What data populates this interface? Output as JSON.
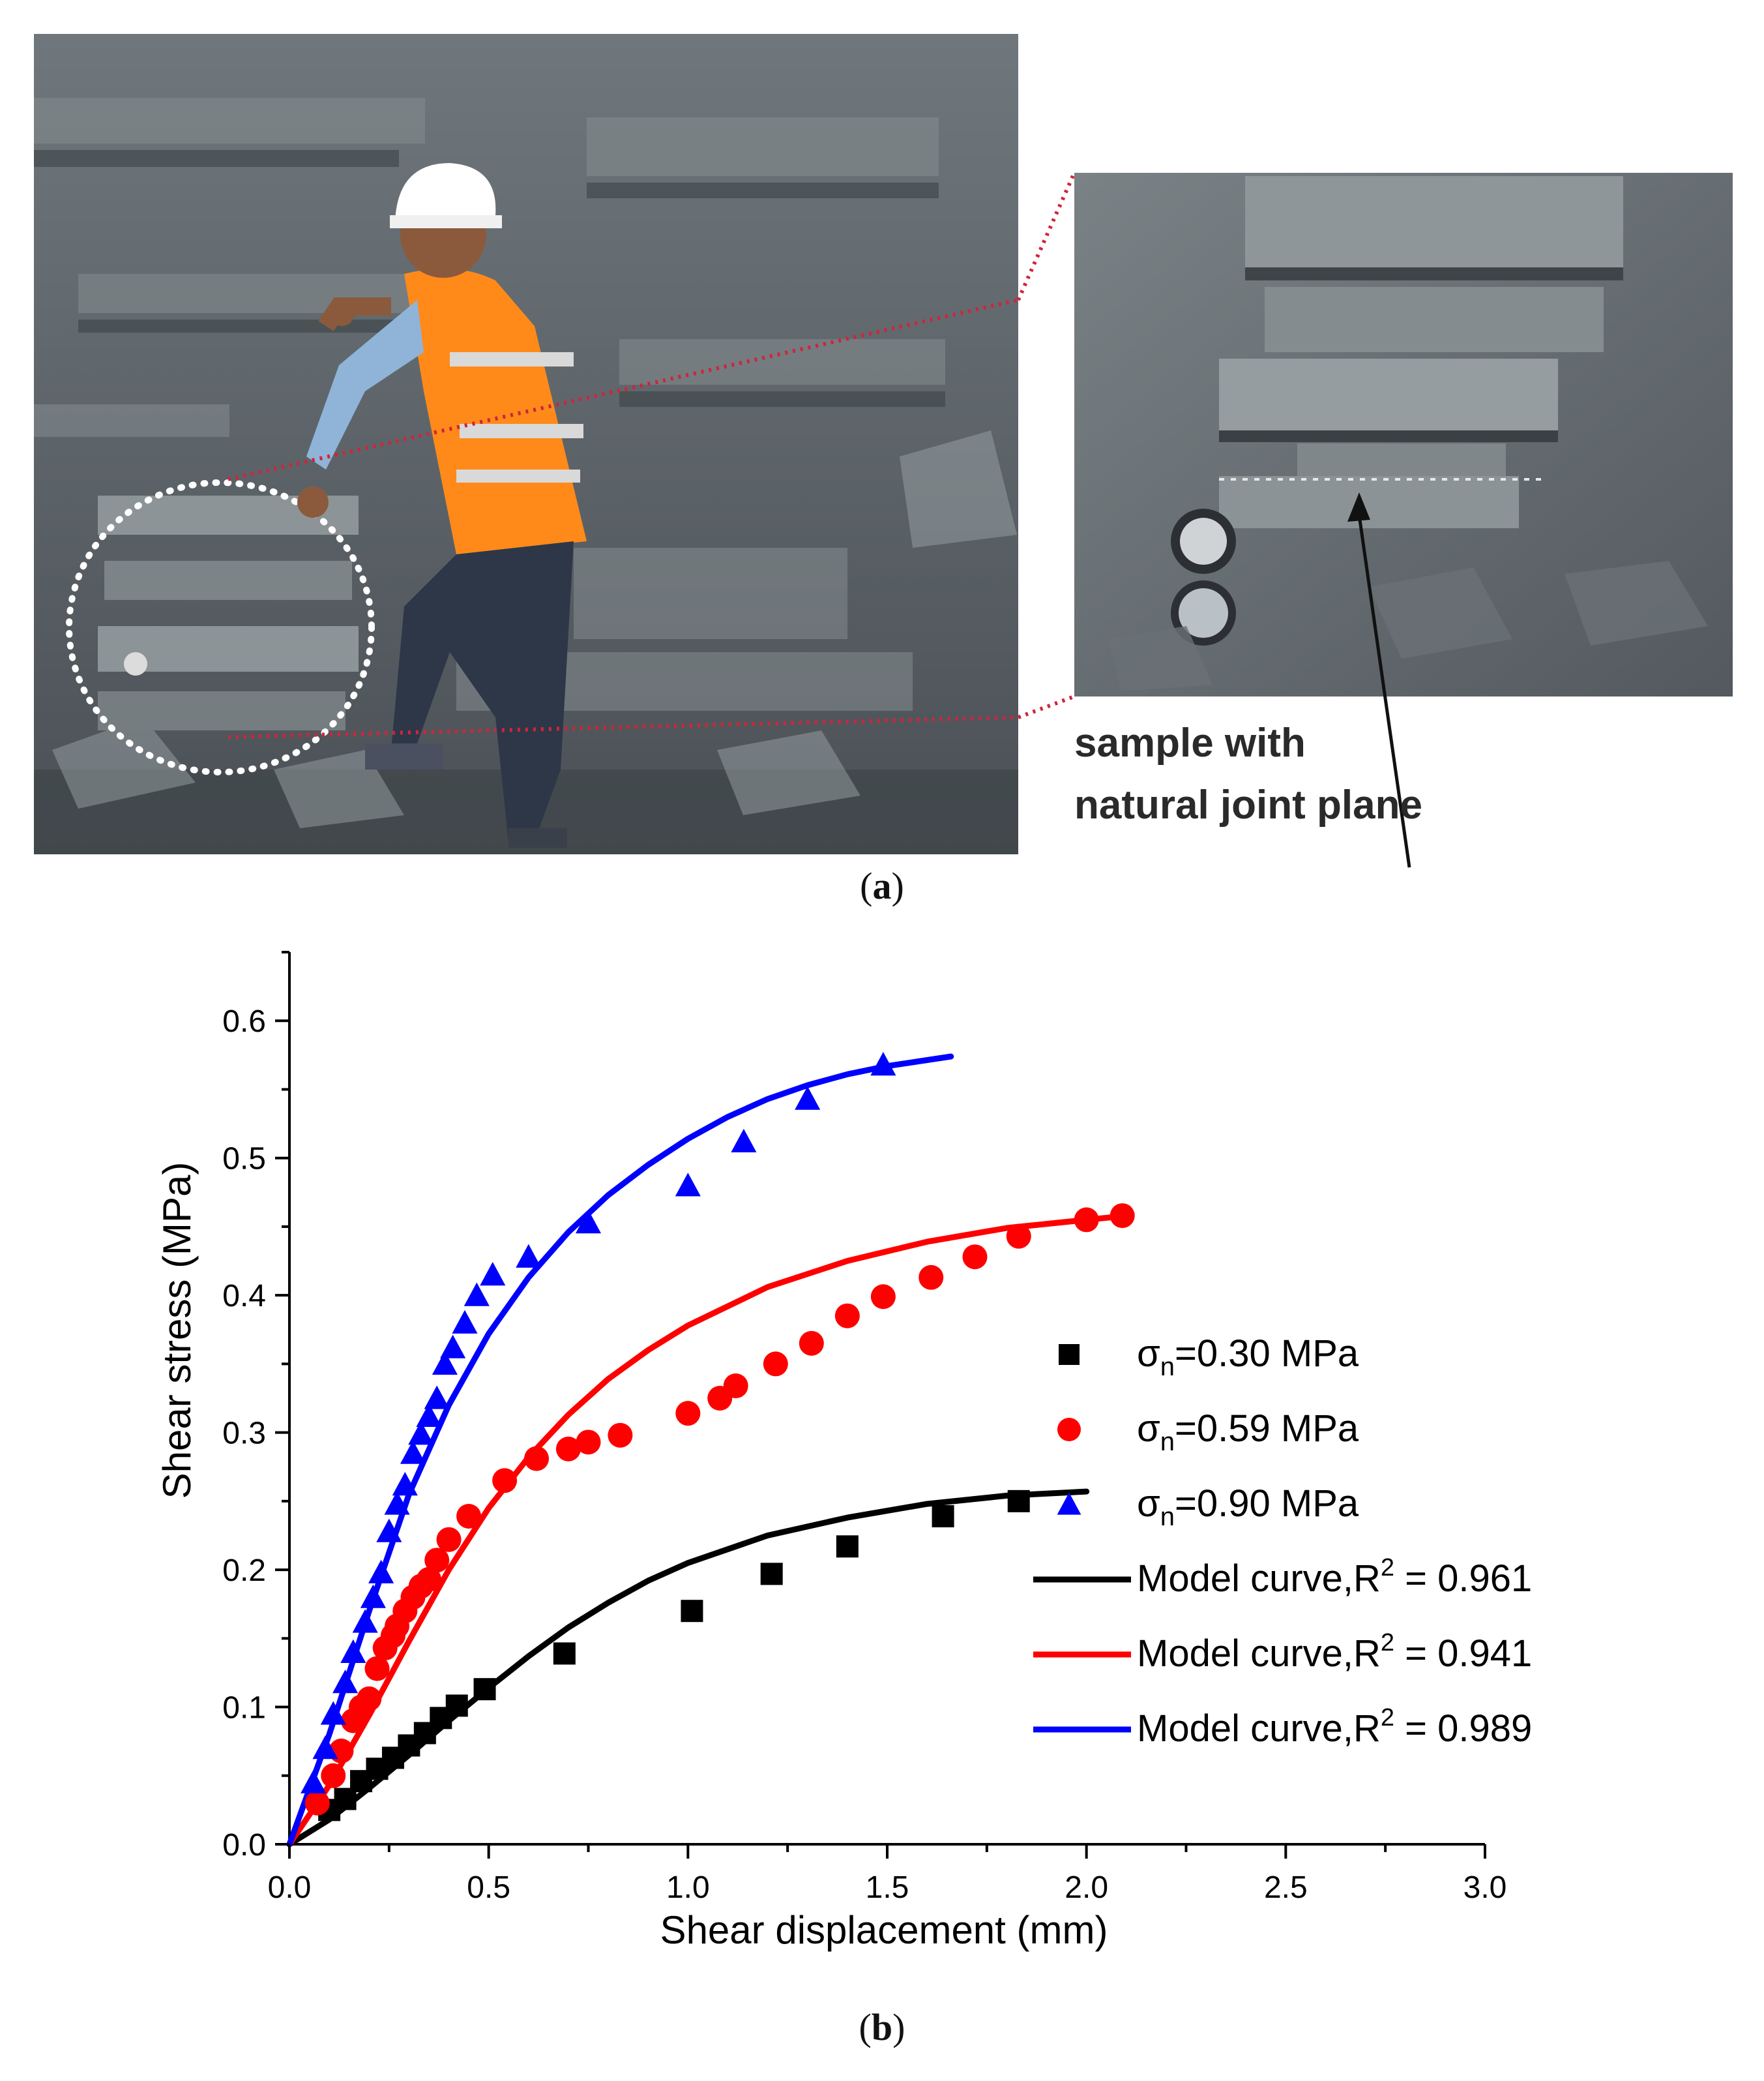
{
  "figure": {
    "panel_a_label": "a",
    "panel_b_label": "b",
    "photo_annotation_line1": "sample with",
    "photo_annotation_line2": "natural joint plane"
  },
  "chart_data": {
    "type": "scatter",
    "xlabel": "Shear displacement (mm)",
    "ylabel": "Shear stress (MPa)",
    "xlim": [
      0,
      3.0
    ],
    "ylim": [
      0,
      0.65
    ],
    "xticks": [
      "0.0",
      "0.5",
      "1.0",
      "1.5",
      "2.0",
      "2.5",
      "3.0"
    ],
    "yticks": [
      "0.0",
      "0.1",
      "0.2",
      "0.3",
      "0.4",
      "0.5",
      "0.6"
    ],
    "legend_position": "right",
    "series": [
      {
        "name": "σn=0.30 MPa",
        "legend_main": "σ",
        "legend_sub": "n",
        "legend_rest": "=0.30 MPa",
        "marker": "square",
        "color": "#000000",
        "x": [
          0.1,
          0.14,
          0.18,
          0.22,
          0.26,
          0.3,
          0.34,
          0.38,
          0.42,
          0.49,
          0.69,
          1.01,
          1.21,
          1.4,
          1.64,
          1.83
        ],
        "y": [
          0.025,
          0.033,
          0.046,
          0.055,
          0.063,
          0.072,
          0.081,
          0.092,
          0.101,
          0.113,
          0.139,
          0.17,
          0.197,
          0.217,
          0.239,
          0.25
        ]
      },
      {
        "name": "σn=0.59 MPa",
        "legend_main": "σ",
        "legend_sub": "n",
        "legend_rest": "=0.59 MPa",
        "marker": "circle",
        "color": "#ff0000",
        "x": [
          0.07,
          0.11,
          0.13,
          0.16,
          0.18,
          0.2,
          0.22,
          0.24,
          0.26,
          0.27,
          0.29,
          0.31,
          0.33,
          0.35,
          0.37,
          0.4,
          0.45,
          0.54,
          0.62,
          0.7,
          0.75,
          0.83,
          1.0,
          1.08,
          1.12,
          1.22,
          1.31,
          1.4,
          1.49,
          1.61,
          1.72,
          1.83,
          2.0,
          2.09
        ],
        "y": [
          0.03,
          0.05,
          0.068,
          0.09,
          0.1,
          0.106,
          0.128,
          0.143,
          0.152,
          0.159,
          0.17,
          0.18,
          0.188,
          0.193,
          0.207,
          0.222,
          0.239,
          0.265,
          0.281,
          0.288,
          0.293,
          0.298,
          0.314,
          0.325,
          0.334,
          0.35,
          0.365,
          0.385,
          0.399,
          0.413,
          0.428,
          0.443,
          0.455,
          0.458
        ]
      },
      {
        "name": "σn=0.90 MPa",
        "legend_main": "σ",
        "legend_sub": "n",
        "legend_rest": "=0.90 MPa",
        "marker": "triangle",
        "color": "#0000ff",
        "x": [
          0.06,
          0.09,
          0.11,
          0.14,
          0.16,
          0.19,
          0.21,
          0.23,
          0.25,
          0.27,
          0.29,
          0.31,
          0.33,
          0.35,
          0.37,
          0.39,
          0.41,
          0.44,
          0.47,
          0.51,
          0.6,
          0.75,
          1.0,
          1.14,
          1.3,
          1.49
        ],
        "y": [
          0.045,
          0.07,
          0.095,
          0.118,
          0.14,
          0.162,
          0.18,
          0.198,
          0.228,
          0.248,
          0.262,
          0.285,
          0.299,
          0.312,
          0.325,
          0.35,
          0.362,
          0.38,
          0.4,
          0.415,
          0.428,
          0.453,
          0.48,
          0.512,
          0.543,
          0.568
        ]
      }
    ],
    "model_curves": [
      {
        "name": "Model curve,R2 = 0.961",
        "legend_main": "Model curve,R",
        "legend_sup": "2",
        "legend_rest": " = 0.961",
        "color": "#000000",
        "x": [
          0.0,
          0.1,
          0.2,
          0.3,
          0.4,
          0.5,
          0.6,
          0.7,
          0.8,
          0.9,
          1.0,
          1.2,
          1.4,
          1.6,
          1.8,
          2.0
        ],
        "y": [
          0.0,
          0.018,
          0.041,
          0.065,
          0.09,
          0.114,
          0.137,
          0.158,
          0.176,
          0.192,
          0.205,
          0.225,
          0.238,
          0.248,
          0.254,
          0.257
        ]
      },
      {
        "name": "Model curve,R2 = 0.941",
        "legend_main": "Model curve,R",
        "legend_sup": "2",
        "legend_rest": " = 0.941",
        "color": "#ff0000",
        "x": [
          0.0,
          0.1,
          0.2,
          0.3,
          0.4,
          0.5,
          0.6,
          0.7,
          0.8,
          0.9,
          1.0,
          1.2,
          1.4,
          1.6,
          1.8,
          2.0,
          2.07
        ],
        "y": [
          0.0,
          0.043,
          0.094,
          0.148,
          0.2,
          0.245,
          0.282,
          0.313,
          0.339,
          0.36,
          0.378,
          0.406,
          0.425,
          0.439,
          0.449,
          0.455,
          0.457
        ]
      },
      {
        "name": "Model curve,R2 = 0.989",
        "legend_main": "Model curve,R",
        "legend_sup": "2",
        "legend_rest": " = 0.989",
        "color": "#0000ff",
        "x": [
          0.0,
          0.1,
          0.2,
          0.3,
          0.4,
          0.5,
          0.6,
          0.7,
          0.8,
          0.9,
          1.0,
          1.1,
          1.2,
          1.3,
          1.4,
          1.5,
          1.66
        ],
        "y": [
          0.0,
          0.08,
          0.17,
          0.255,
          0.32,
          0.372,
          0.413,
          0.446,
          0.473,
          0.495,
          0.514,
          0.53,
          0.543,
          0.553,
          0.561,
          0.567,
          0.574
        ]
      }
    ]
  }
}
